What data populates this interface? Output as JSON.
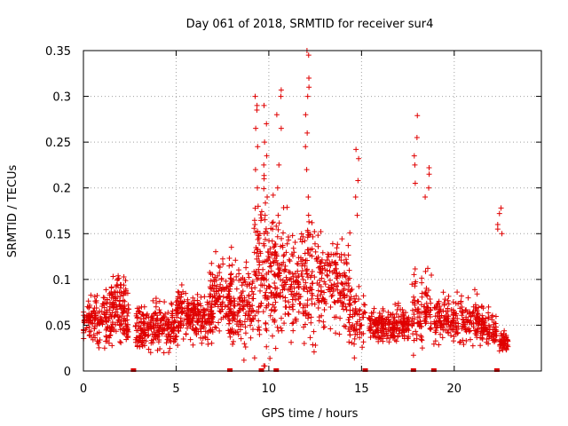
{
  "chart_data": {
    "type": "scatter",
    "title": "Day 061 of 2018, SRMTID for receiver sur4",
    "xlabel": "GPS time / hours",
    "ylabel": "SRMTID / TECUs",
    "xlim": [
      0,
      24.7
    ],
    "ylim": [
      0,
      0.35
    ],
    "x_ticks": [
      "0",
      "5",
      "10",
      "15",
      "20"
    ],
    "x_tick_values": [
      0,
      5,
      10,
      15,
      20
    ],
    "y_ticks": [
      "0",
      "0.05",
      "0.1",
      "0.15",
      "0.2",
      "0.25",
      "0.3",
      "0.35"
    ],
    "y_tick_values": [
      0,
      0.05,
      0.1,
      0.15,
      0.2,
      0.25,
      0.3,
      0.35
    ],
    "grid": true,
    "marker": "plus",
    "color": "#e00000",
    "zero_markers_x": [
      2.7,
      7.9,
      9.6,
      10.4,
      15.2,
      17.8,
      18.9,
      22.3
    ],
    "clusters": [
      {
        "x": [
          0.0,
          2.5
        ],
        "center": 0.055,
        "spread": 0.02,
        "n": 230
      },
      {
        "x": [
          1.4,
          2.3
        ],
        "center": 0.085,
        "spread": 0.012,
        "n": 50
      },
      {
        "x": [
          2.8,
          5.0
        ],
        "center": 0.048,
        "spread": 0.018,
        "n": 220
      },
      {
        "x": [
          5.0,
          7.0
        ],
        "center": 0.06,
        "spread": 0.018,
        "n": 220
      },
      {
        "x": [
          6.8,
          8.0
        ],
        "center": 0.08,
        "spread": 0.03,
        "n": 120
      },
      {
        "x": [
          7.8,
          9.2
        ],
        "center": 0.075,
        "spread": 0.03,
        "n": 140
      },
      {
        "x": [
          9.2,
          10.4
        ],
        "center": 0.1,
        "spread": 0.06,
        "n": 150
      },
      {
        "x": [
          10.3,
          11.3
        ],
        "center": 0.1,
        "spread": 0.04,
        "n": 110
      },
      {
        "x": [
          11.3,
          13.0
        ],
        "center": 0.1,
        "spread": 0.045,
        "n": 180
      },
      {
        "x": [
          13.0,
          14.4
        ],
        "center": 0.095,
        "spread": 0.035,
        "n": 130
      },
      {
        "x": [
          14.3,
          15.2
        ],
        "center": 0.06,
        "spread": 0.025,
        "n": 70
      },
      {
        "x": [
          15.4,
          17.6
        ],
        "center": 0.05,
        "spread": 0.012,
        "n": 230
      },
      {
        "x": [
          17.7,
          18.8
        ],
        "center": 0.065,
        "spread": 0.03,
        "n": 100
      },
      {
        "x": [
          18.9,
          21.6
        ],
        "center": 0.055,
        "spread": 0.018,
        "n": 240
      },
      {
        "x": [
          21.6,
          22.3
        ],
        "center": 0.045,
        "spread": 0.012,
        "n": 60
      },
      {
        "x": [
          22.4,
          22.9
        ],
        "center": 0.032,
        "spread": 0.008,
        "n": 50
      }
    ],
    "peaks": [
      {
        "x": 9.35,
        "y": [
          0.3,
          0.29,
          0.285,
          0.265,
          0.245,
          0.22,
          0.2,
          0.18,
          0.16
        ]
      },
      {
        "x": 9.85,
        "y": [
          0.29,
          0.27,
          0.25,
          0.235,
          0.225,
          0.21,
          0.19,
          0.17
        ]
      },
      {
        "x": 10.55,
        "y": [
          0.307,
          0.3,
          0.28,
          0.265,
          0.225,
          0.2,
          0.17
        ]
      },
      {
        "x": 12.1,
        "y": [
          0.35,
          0.345,
          0.32,
          0.31,
          0.3,
          0.28,
          0.26,
          0.245,
          0.22,
          0.19
        ]
      },
      {
        "x": 14.8,
        "y": [
          0.242,
          0.232,
          0.208,
          0.19,
          0.17
        ]
      },
      {
        "x": 17.95,
        "y": [
          0.279,
          0.255,
          0.235,
          0.225,
          0.205
        ]
      },
      {
        "x": 18.55,
        "y": [
          0.222,
          0.215,
          0.2,
          0.19
        ]
      },
      {
        "x": 22.45,
        "y": [
          0.178,
          0.172,
          0.16,
          0.155,
          0.15
        ]
      }
    ]
  }
}
